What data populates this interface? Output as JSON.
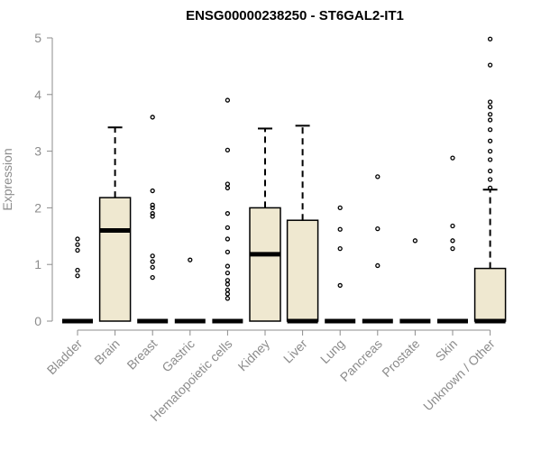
{
  "colors": {
    "box_fill": "#efe8d0",
    "axis": "#8c8c8c",
    "title": "#000000",
    "stroke": "#000000"
  },
  "chart_data": {
    "type": "boxplot",
    "title": "ENSG00000238250 - ST6GAL2-IT1",
    "xlabel": "",
    "ylabel": "Expression",
    "ylim": [
      0,
      5
    ],
    "yticks": [
      0,
      1,
      2,
      3,
      4,
      5
    ],
    "grid": false,
    "categories": [
      "Bladder",
      "Brain",
      "Breast",
      "Gastric",
      "Hematopoietic cells",
      "Kidney",
      "Liver",
      "Lung",
      "Pancreas",
      "Prostate",
      "Skin",
      "Unknown / Other"
    ],
    "boxes": [
      {
        "category": "Bladder",
        "min": 0,
        "q1": 0,
        "median": 0,
        "q3": 0,
        "max": 0,
        "outliers": [
          0.8,
          0.9,
          1.25,
          1.35,
          1.45
        ]
      },
      {
        "category": "Brain",
        "min": 0,
        "q1": 0,
        "median": 1.6,
        "q3": 2.18,
        "max": 3.42,
        "outliers": []
      },
      {
        "category": "Breast",
        "min": 0,
        "q1": 0,
        "median": 0,
        "q3": 0,
        "max": 0,
        "outliers": [
          0.77,
          0.95,
          1.05,
          1.15,
          1.85,
          1.9,
          2.0,
          2.05,
          2.3,
          3.6
        ]
      },
      {
        "category": "Gastric",
        "min": 0,
        "q1": 0,
        "median": 0,
        "q3": 0,
        "max": 0,
        "outliers": [
          1.08
        ]
      },
      {
        "category": "Hematopoietic cells",
        "min": 0,
        "q1": 0,
        "median": 0,
        "q3": 0,
        "max": 0,
        "outliers": [
          0.4,
          0.48,
          0.55,
          0.65,
          0.72,
          0.85,
          0.97,
          1.22,
          1.45,
          1.65,
          1.9,
          2.35,
          2.42,
          3.02,
          3.9
        ]
      },
      {
        "category": "Kidney",
        "min": 0,
        "q1": 0,
        "median": 1.18,
        "q3": 2.0,
        "max": 3.4,
        "outliers": []
      },
      {
        "category": "Liver",
        "min": 0,
        "q1": 0,
        "median": 0,
        "q3": 1.78,
        "max": 3.45,
        "outliers": []
      },
      {
        "category": "Lung",
        "min": 0,
        "q1": 0,
        "median": 0,
        "q3": 0,
        "max": 0,
        "outliers": [
          0.63,
          1.28,
          1.62,
          2.0
        ]
      },
      {
        "category": "Pancreas",
        "min": 0,
        "q1": 0,
        "median": 0,
        "q3": 0,
        "max": 0,
        "outliers": [
          0.98,
          1.63,
          2.55
        ]
      },
      {
        "category": "Prostate",
        "min": 0,
        "q1": 0,
        "median": 0,
        "q3": 0,
        "max": 0,
        "outliers": [
          1.42
        ]
      },
      {
        "category": "Skin",
        "min": 0,
        "q1": 0,
        "median": 0,
        "q3": 0,
        "max": 0,
        "outliers": [
          1.28,
          1.42,
          1.68,
          2.88
        ]
      },
      {
        "category": "Unknown / Other",
        "min": 0,
        "q1": 0,
        "median": 0,
        "q3": 0.93,
        "max": 2.32,
        "outliers": [
          2.35,
          2.5,
          2.65,
          2.85,
          3.0,
          3.18,
          3.38,
          3.55,
          3.65,
          3.78,
          3.87,
          4.52,
          4.98
        ]
      }
    ]
  }
}
